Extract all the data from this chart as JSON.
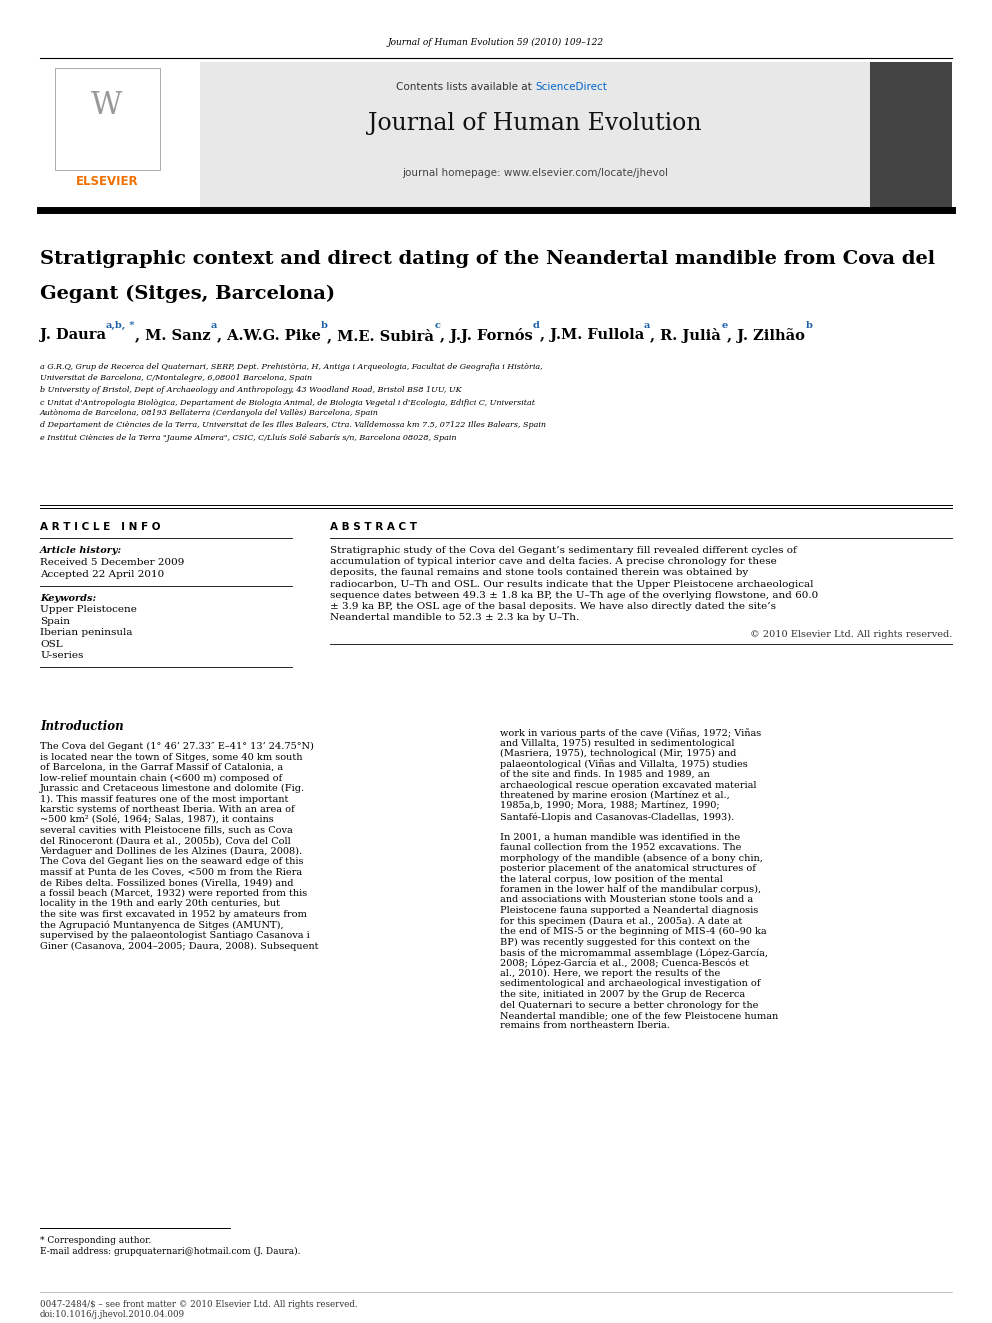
{
  "page_width": 9.92,
  "page_height": 13.23,
  "background_color": "#ffffff",
  "journal_ref": "Journal of Human Evolution 59 (2010) 109–122",
  "header_bg": "#e8e8e8",
  "header_link_color": "#0066cc",
  "sciencedirect_text": "ScienceDirect",
  "journal_title": "Journal of Human Evolution",
  "journal_homepage": "journal homepage: www.elsevier.com/locate/jhevol",
  "elsevier_color": "#f07000",
  "article_title_line1": "Stratigraphic context and direct dating of the Neandertal mandible from Cova del",
  "article_title_line2": "Gegant (Sitges, Barcelona)",
  "affil_a": "a G.R.Q, Grup de Recerca del Quaternari, SERP, Dept. Prehistòria, H, Antiga i Arqueologia, Facultat de Geografia i Història, Universitat de Barcelona, C/Montalegre, 6,08001 Barcelona, Spain",
  "affil_b": "b University of Bristol, Dept of Archaeology and Anthropology, 43 Woodland Road, Bristol BS8 1UU, UK",
  "affil_c": "c Unitat d'Antropologia Biològica, Departament de Biologia Animal, de Biologia Vegetal i d'Ecologia, Edifici C, Universitat Autònoma de Barcelona, 08193 Bellaterra (Cerdanyola del Vallès) Barcelona, Spain",
  "affil_d": "d Departament de Ciències de la Terra, Universitat de les Illes Balears, Ctra. Valldemossa km 7.5, 07122 Illes Balears, Spain",
  "affil_e": "e Institut Ciències de la Terra \"Jaume Almera\", CSIC, C/Lluís Solé Sabarís s/n, Barcelona 08028, Spain",
  "article_info_title": "ARTICLE INFO",
  "abstract_title": "ABSTRACT",
  "article_history_label": "Article history:",
  "received": "Received 5 December 2009",
  "accepted": "Accepted 22 April 2010",
  "keywords_label": "Keywords:",
  "keywords": [
    "Upper Pleistocene",
    "Spain",
    "Iberian peninsula",
    "OSL",
    "U-series"
  ],
  "abstract_text": "Stratigraphic study of the Cova del Gegant’s sedimentary fill revealed different cycles of accumulation of typical interior cave and delta facies. A precise chronology for these deposits, the faunal remains and stone tools contained therein was obtained by radiocarbon, U–Th and OSL. Our results indicate that the Upper Pleistocene archaeological sequence dates between 49.3 ± 1.8 ka BP, the U–Th age of the overlying flowstone, and 60.0 ± 3.9 ka BP, the OSL age of the basal deposits. We have also directly dated the site’s Neandertal mandible to 52.3 ± 2.3 ka by U–Th.",
  "copyright": "© 2010 Elsevier Ltd. All rights reserved.",
  "intro_title": "Introduction",
  "intro_left": "The Cova del Gegant (1° 46’ 27.33″ E–41° 13’ 24.75°N) is located near the town of Sitges, some 40 km south of Barcelona, in the Garraf Massif of Catalonia, a low-relief mountain chain (<600 m) composed of Jurassic and Cretaceous limestone and dolomite (Fig. 1). This massif features one of the most important karstic systems of northeast Iberia. With an area of ~500 km² (Solé, 1964; Salas, 1987), it contains several cavities with Pleistocene fills, such as Cova del Rinoceront (Daura et al., 2005b), Cova del Coll Verdaguer and Dollines de les Alzines (Daura, 2008). The Cova del Gegant lies on the seaward edge of this massif at Punta de les Coves, <500 m from the Riera de Ribes delta. Fossilized bones (Virella, 1949) and a fossil beach (Marcet, 1932) were reported from this locality in the 19th and early 20th centuries, but the site was first excavated in 1952 by amateurs from the Agrupació Muntanyenca de Sitges (AMUNT), supervised by the palaeontologist Santiago Casanova i Giner (Casanova, 2004–2005; Daura, 2008). Subsequent",
  "intro_right_p1": "work in various parts of the cave (Viñas, 1972; Viñas and Villalta, 1975) resulted in sedimentological (Masriera, 1975), technological (Mir, 1975) and palaeontological (Viñas and Villalta, 1975) studies of the site and finds. In 1985 and 1989, an archaeological rescue operation excavated material threatened by marine erosion (Martínez et al., 1985a,b, 1990; Mora, 1988; Martínez, 1990; Santafé-Llopis and Casanovas-Cladellas, 1993).",
  "intro_right_p2": "In 2001, a human mandible was identified in the faunal collection from the 1952 excavations. The morphology of the mandible (absence of a bony chin, posterior placement of the anatomical structures of the lateral corpus, low position of the mental foramen in the lower half of the mandibular corpus), and associations with Mousterian stone tools and a Pleistocene fauna supported a Neandertal diagnosis for this specimen (Daura et al., 2005a). A date at the end of MIS-5 or the beginning of MIS-4 (60–90 ka BP) was recently suggested for this context on the basis of the micromammal assemblage (López-García, 2008; López-García et al., 2008; Cuenca-Bescós et al., 2010). Here, we report the results of the sedimentological and archaeological investigation of the site, initiated in 2007 by the Grup de Recerca del Quaternari to secure a better chronology for the Neandertal mandible; one of the few Pleistocene human remains from northeastern Iberia.",
  "footnote_corresponding": "* Corresponding author.",
  "footnote_email": "E-mail address: grupquaternari@hotmail.com (J. Daura).",
  "footer_issn": "0047-2484/$ – see front matter © 2010 Elsevier Ltd. All rights reserved.",
  "footer_doi": "doi:10.1016/j.jhevol.2010.04.009",
  "author_parts": [
    [
      "J. Daura",
      false
    ],
    [
      "a,b,",
      true
    ],
    [
      " *",
      true
    ],
    [
      ", M. Sanz",
      false
    ],
    [
      "a",
      true
    ],
    [
      ", A.W.G. Pike",
      false
    ],
    [
      "b",
      true
    ],
    [
      ", M.E. Subirà",
      false
    ],
    [
      "c",
      true
    ],
    [
      ", J.J. Fornós",
      false
    ],
    [
      "d",
      true
    ],
    [
      ", J.M. Fullola",
      false
    ],
    [
      "a",
      true
    ],
    [
      ", R. Julià",
      false
    ],
    [
      "e",
      true
    ],
    [
      ", J. Zilhão",
      false
    ],
    [
      "b",
      true
    ]
  ]
}
